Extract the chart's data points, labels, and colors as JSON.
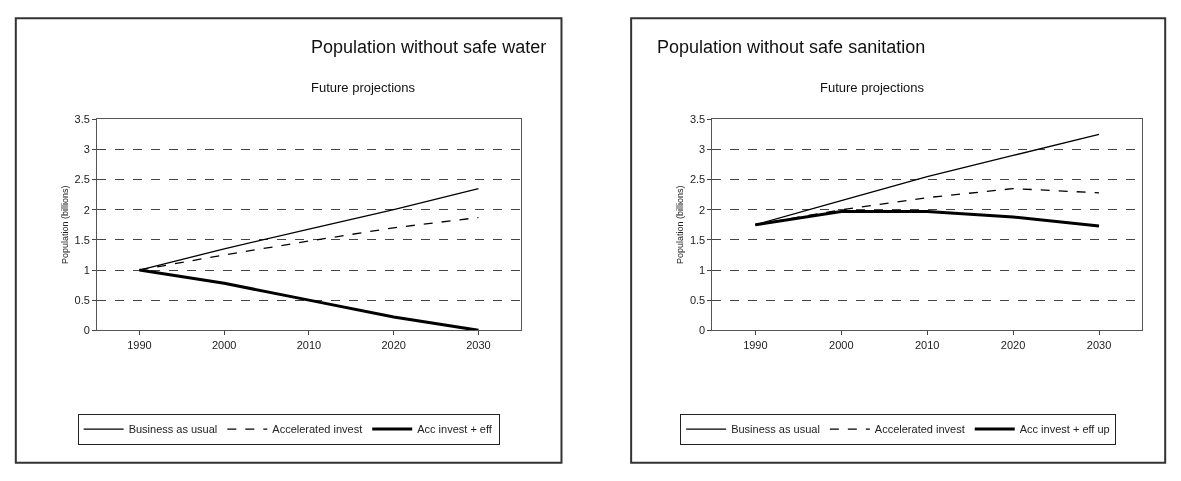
{
  "chart_data": [
    {
      "type": "line",
      "title": "Population without safe water",
      "subtitle": "Future projections",
      "ylabel": "Population (billions)",
      "categories": [
        "1990",
        "2000",
        "2010",
        "2020",
        "2030"
      ],
      "ylim": [
        0,
        3.5
      ],
      "yticks": [
        0,
        0.5,
        1,
        1.5,
        2,
        2.5,
        3,
        3.5
      ],
      "grid": "y",
      "legend": "bottom",
      "marker": "none",
      "series": [
        {
          "name": "Business as usual",
          "color": "#000000",
          "line_style": "solid",
          "values": [
            1,
            1.35,
            1.68,
            2.0,
            2.35
          ]
        },
        {
          "name": "Accelerated invest",
          "color": "#000000",
          "line_style": "dashed",
          "values": [
            1,
            1.25,
            1.48,
            1.7,
            1.87
          ]
        },
        {
          "name": "Acc invest + eff",
          "color": "#000000",
          "line_style": "solid",
          "values": [
            1,
            0.78,
            0.5,
            0.22,
            0
          ]
        }
      ]
    },
    {
      "type": "line",
      "title": "Population without safe sanitation",
      "subtitle": "Future projections",
      "ylabel": "Population (billions)",
      "categories": [
        "1990",
        "2000",
        "2010",
        "2020",
        "2030"
      ],
      "ylim": [
        0,
        3.5
      ],
      "yticks": [
        0,
        0.5,
        1,
        1.5,
        2,
        2.5,
        3,
        3.5
      ],
      "grid": "y",
      "legend": "bottom",
      "marker": "none",
      "series": [
        {
          "name": "Business as usual",
          "color": "#000000",
          "line_style": "solid",
          "values": [
            1.75,
            2.15,
            2.55,
            2.9,
            3.25
          ]
        },
        {
          "name": "Accelerated invest",
          "color": "#000000",
          "line_style": "dashed",
          "values": [
            1.75,
            2.0,
            2.2,
            2.35,
            2.28
          ]
        },
        {
          "name": "Acc invest + eff up",
          "color": "#000000",
          "line_style": "solid",
          "values": [
            1.75,
            1.97,
            1.97,
            1.88,
            1.73
          ]
        }
      ]
    }
  ]
}
